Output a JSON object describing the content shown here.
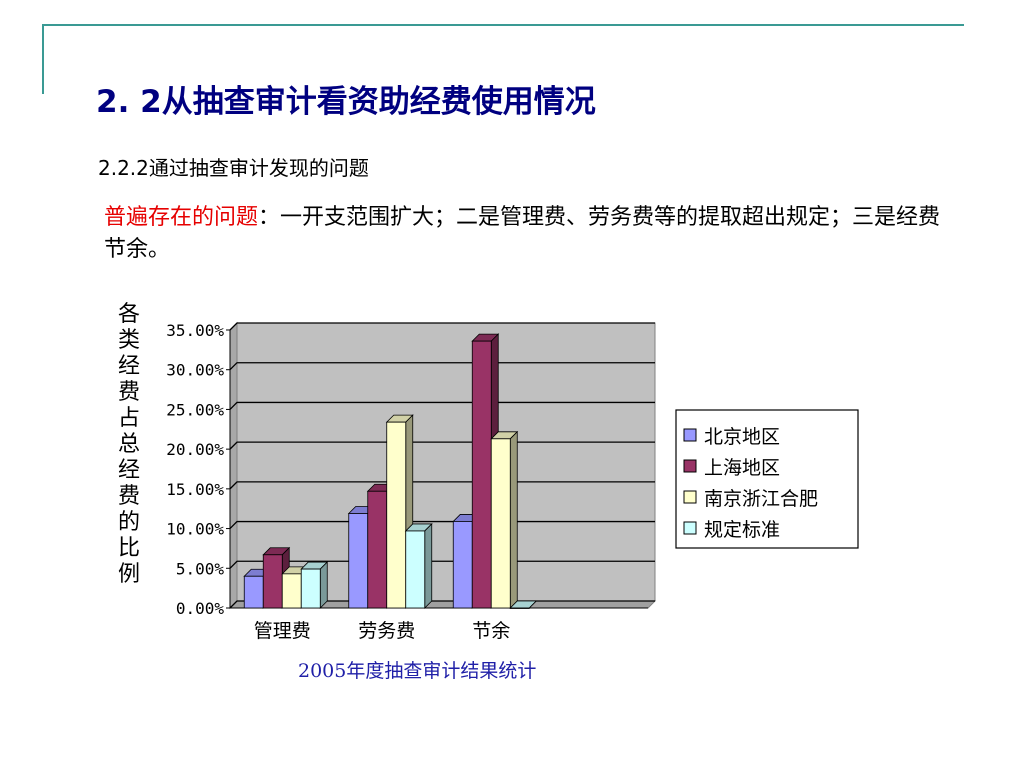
{
  "slide": {
    "title": "2. 2从抽查审计看资助经费使用情况",
    "subtitle": "2.2.2通过抽查审计发现的问题",
    "body_red": "普遍存在的问题",
    "body_rest": "：一开支范围扩大；二是管理费、劳务费等的提取超出规定；三是经费节余。",
    "caption": "2005年度抽查审计结果统计"
  },
  "chart_data": {
    "type": "bar",
    "ylabel": "各类经费占总经费的比例",
    "categories": [
      "管理费",
      "劳务费",
      "节余"
    ],
    "ylim": [
      0,
      35
    ],
    "yticks": [
      "0.00%",
      "5.00%",
      "10.00%",
      "15.00%",
      "20.00%",
      "25.00%",
      "30.00%",
      "35.00%"
    ],
    "grid": true,
    "legend_position": "right",
    "series": [
      {
        "name": "北京地区",
        "color": "#9999ff",
        "values": [
          4.0,
          11.9,
          10.9
        ]
      },
      {
        "name": "上海地区",
        "color": "#993366",
        "values": [
          6.7,
          14.7,
          33.6
        ]
      },
      {
        "name": "南京浙江合肥",
        "color": "#ffffcc",
        "values": [
          4.3,
          23.4,
          21.3
        ]
      },
      {
        "name": "规定标准",
        "color": "#ccffff",
        "values": [
          4.9,
          9.7,
          0.0
        ]
      }
    ]
  }
}
